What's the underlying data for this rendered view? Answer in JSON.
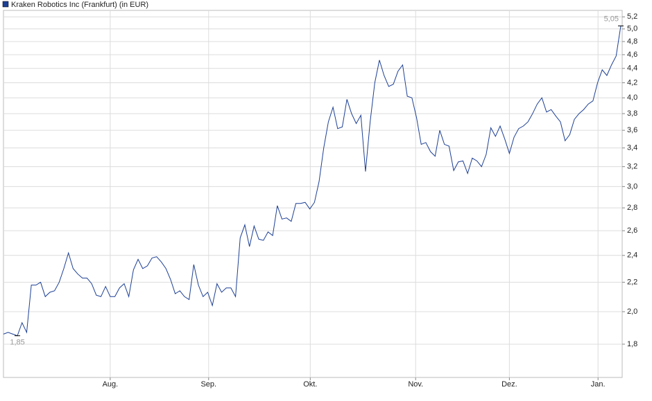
{
  "chart_data": {
    "type": "line",
    "log_y": true,
    "grid": true,
    "legend": "top-left",
    "series": [
      {
        "name": "Kraken Robotics Inc (Frankfurt) (in EUR)",
        "color": "#1c3f94",
        "values": [
          1.86,
          1.87,
          1.86,
          1.85,
          1.93,
          1.87,
          2.18,
          2.18,
          2.2,
          2.1,
          2.13,
          2.14,
          2.2,
          2.3,
          2.42,
          2.3,
          2.26,
          2.23,
          2.23,
          2.19,
          2.11,
          2.1,
          2.17,
          2.1,
          2.1,
          2.16,
          2.19,
          2.1,
          2.29,
          2.37,
          2.3,
          2.32,
          2.38,
          2.39,
          2.35,
          2.3,
          2.22,
          2.12,
          2.14,
          2.1,
          2.08,
          2.33,
          2.18,
          2.1,
          2.13,
          2.04,
          2.19,
          2.13,
          2.16,
          2.16,
          2.1,
          2.54,
          2.65,
          2.47,
          2.64,
          2.53,
          2.52,
          2.59,
          2.56,
          2.82,
          2.7,
          2.71,
          2.68,
          2.84,
          2.84,
          2.85,
          2.79,
          2.85,
          3.05,
          3.4,
          3.7,
          3.88,
          3.62,
          3.64,
          3.98,
          3.8,
          3.68,
          3.78,
          3.15,
          3.7,
          4.2,
          4.52,
          4.3,
          4.15,
          4.18,
          4.36,
          4.45,
          4.02,
          4.0,
          3.75,
          3.44,
          3.46,
          3.36,
          3.31,
          3.6,
          3.44,
          3.42,
          3.16,
          3.25,
          3.26,
          3.13,
          3.29,
          3.26,
          3.2,
          3.33,
          3.63,
          3.53,
          3.65,
          3.5,
          3.34,
          3.52,
          3.62,
          3.65,
          3.7,
          3.8,
          3.92,
          4.0,
          3.82,
          3.85,
          3.77,
          3.7,
          3.48,
          3.55,
          3.73,
          3.8,
          3.85,
          3.92,
          3.96,
          4.2,
          4.38,
          4.3,
          4.45,
          4.58,
          5.05
        ]
      }
    ],
    "annotations": [
      {
        "value": 1.85,
        "label": "1,85"
      },
      {
        "value": 5.05,
        "label": "5,05"
      }
    ],
    "xlim": [
      0,
      133.3
    ],
    "xticks": [
      {
        "value": 23.0,
        "label": "Aug."
      },
      {
        "value": 44.2,
        "label": "Sep."
      },
      {
        "value": 66.1,
        "label": "Okt."
      },
      {
        "value": 88.8,
        "label": "Nov."
      },
      {
        "value": 109.0,
        "label": "Dez."
      },
      {
        "value": 128.1,
        "label": "Jan."
      }
    ],
    "ylim": [
      1.616,
      5.31
    ],
    "yticks": [
      {
        "value": 1.8,
        "label": "1,8"
      },
      {
        "value": 2.0,
        "label": "2,0"
      },
      {
        "value": 2.2,
        "label": "2,2"
      },
      {
        "value": 2.4,
        "label": "2,4"
      },
      {
        "value": 2.6,
        "label": "2,6"
      },
      {
        "value": 2.8,
        "label": "2,8"
      },
      {
        "value": 3.0,
        "label": "3,0"
      },
      {
        "value": 3.2,
        "label": "3,2"
      },
      {
        "value": 3.4,
        "label": "3,4"
      },
      {
        "value": 3.6,
        "label": "3,6"
      },
      {
        "value": 3.8,
        "label": "3,8"
      },
      {
        "value": 4.0,
        "label": "4,0"
      },
      {
        "value": 4.2,
        "label": "4,2"
      },
      {
        "value": 4.4,
        "label": "4,4"
      },
      {
        "value": 4.6,
        "label": "4,6"
      },
      {
        "value": 4.8,
        "label": "4,8"
      },
      {
        "value": 5.0,
        "label": "5,0"
      },
      {
        "value": 5.2,
        "label": "5,2"
      }
    ]
  }
}
